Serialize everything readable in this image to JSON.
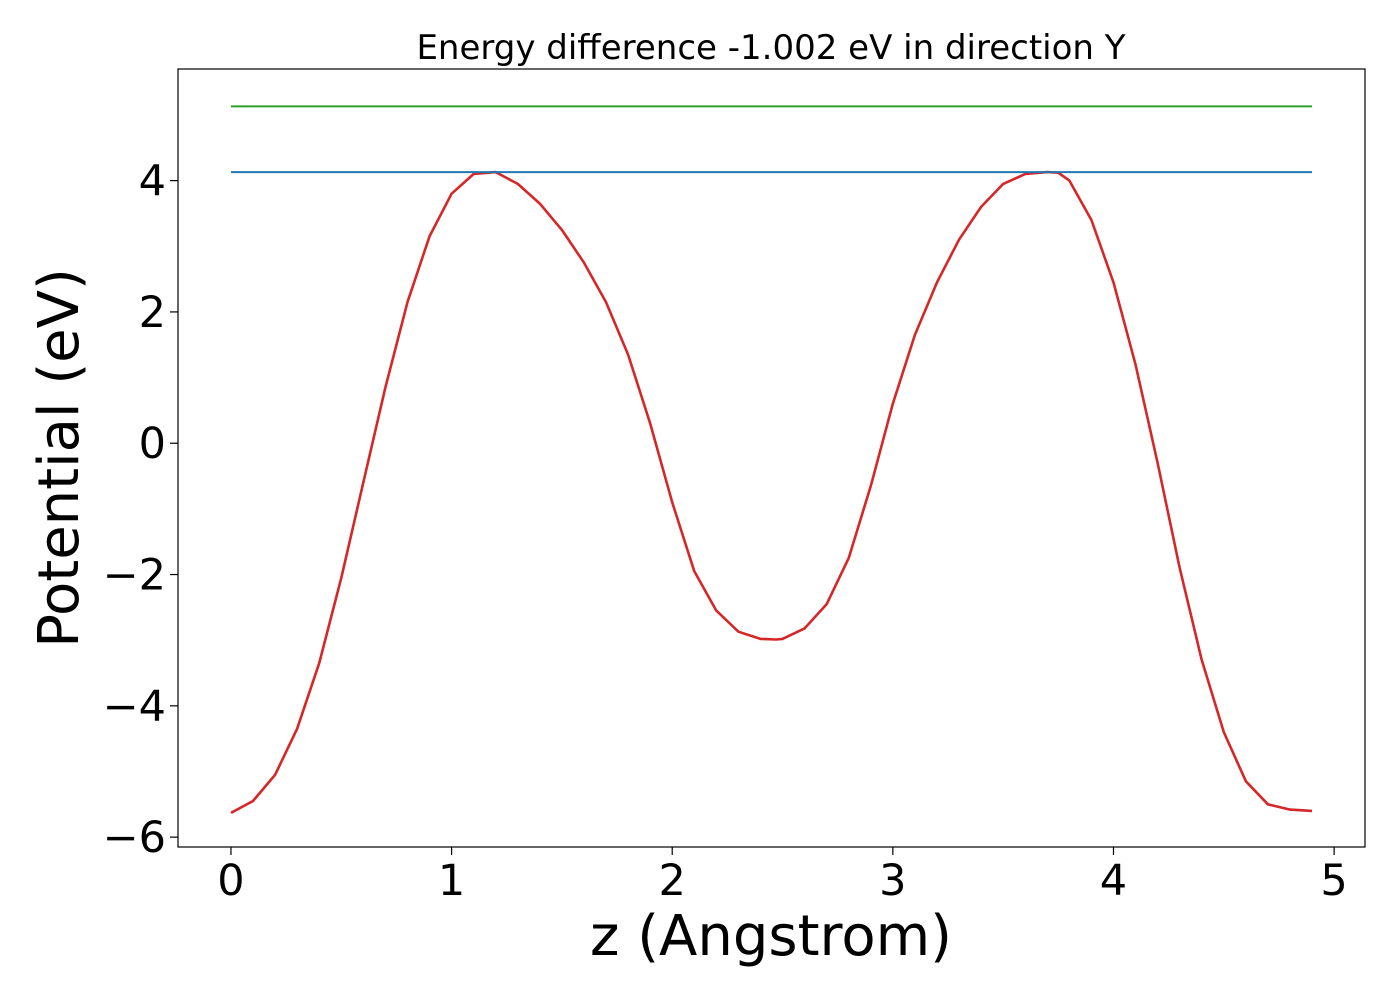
{
  "chart_data": {
    "type": "line",
    "title": "Energy difference -1.002 eV in direction Y",
    "xlabel": "z (Angstrom)",
    "ylabel": "Potential (eV)",
    "xlim": [
      -0.24,
      5.14
    ],
    "ylim": [
      -6.15,
      5.7
    ],
    "xticks": [
      0,
      1,
      2,
      3,
      4,
      5
    ],
    "xtick_labels": [
      "0",
      "1",
      "2",
      "3",
      "4",
      "5"
    ],
    "yticks": [
      -6,
      -4,
      -2,
      0,
      2,
      4
    ],
    "ytick_labels": [
      "−6",
      "−4",
      "−2",
      "0",
      "2",
      "4"
    ],
    "grid": false,
    "legend": "none",
    "series": [
      {
        "color": "#d62728",
        "x": [
          0,
          0.1,
          0.2,
          0.3,
          0.4,
          0.5,
          0.6,
          0.7,
          0.8,
          0.9,
          1.0,
          1.1,
          1.2,
          1.3,
          1.4,
          1.5,
          1.6,
          1.7,
          1.8,
          1.9,
          2.0,
          2.1,
          2.2,
          2.3,
          2.4,
          2.47,
          2.5,
          2.6,
          2.7,
          2.8,
          2.9,
          3.0,
          3.1,
          3.2,
          3.3,
          3.4,
          3.5,
          3.6,
          3.7,
          3.75,
          3.8,
          3.9,
          4.0,
          4.1,
          4.2,
          4.3,
          4.4,
          4.5,
          4.6,
          4.7,
          4.8,
          4.9
        ],
        "y": [
          -5.63,
          -5.45,
          -5.05,
          -4.35,
          -3.35,
          -2.05,
          -0.6,
          0.85,
          2.15,
          3.15,
          3.8,
          4.1,
          4.13,
          3.95,
          3.65,
          3.25,
          2.75,
          2.15,
          1.35,
          0.3,
          -0.9,
          -1.95,
          -2.55,
          -2.87,
          -2.98,
          -2.99,
          -2.98,
          -2.82,
          -2.45,
          -1.75,
          -0.65,
          0.6,
          1.65,
          2.45,
          3.1,
          3.6,
          3.95,
          4.1,
          4.13,
          4.12,
          4.0,
          3.4,
          2.45,
          1.2,
          -0.3,
          -1.9,
          -3.3,
          -4.4,
          -5.15,
          -5.5,
          -5.58,
          -5.6
        ]
      },
      {
        "color": "#1f77b4",
        "x": [
          0,
          4.9
        ],
        "y": [
          4.13,
          4.13
        ]
      },
      {
        "color": "#2ca02c",
        "x": [
          0,
          4.9
        ],
        "y": [
          5.13,
          5.13
        ]
      }
    ]
  }
}
